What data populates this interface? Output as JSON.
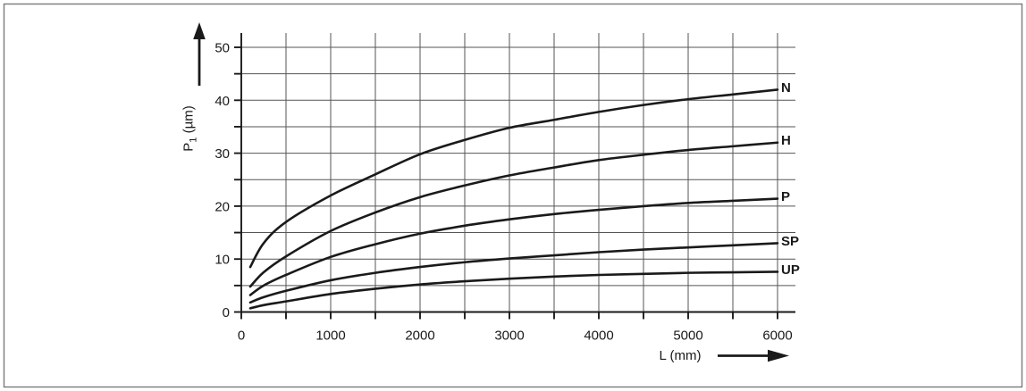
{
  "figure": {
    "background": "#ffffff",
    "border_color": "#7a7a7a"
  },
  "chart_data": {
    "type": "line",
    "title": "",
    "xlabel": "L (mm)",
    "ylabel": "P1 (µm)",
    "ylabel_parts": {
      "main": "P",
      "sub": "1",
      "unit": " (µm)"
    },
    "xlim": [
      0,
      6200
    ],
    "ylim": [
      0,
      52.5
    ],
    "x_tick_labels": [
      "0",
      "1000",
      "2000",
      "3000",
      "4000",
      "5000",
      "6000"
    ],
    "x_tick_values": [
      0,
      1000,
      2000,
      3000,
      4000,
      5000,
      6000
    ],
    "y_tick_labels": [
      "0",
      "10",
      "20",
      "30",
      "40",
      "50"
    ],
    "y_tick_values": [
      0,
      10,
      20,
      30,
      40,
      50
    ],
    "x_grid_step": 500,
    "y_grid_step": 5,
    "grid": true,
    "legend_position": "labels-at-curve-ends",
    "x": [
      100,
      250,
      500,
      1000,
      1500,
      2000,
      2500,
      3000,
      3500,
      4000,
      4500,
      5000,
      5500,
      6000
    ],
    "series": [
      {
        "name": "N",
        "values": [
          8.5,
          13.0,
          17.0,
          22.0,
          26.0,
          29.8,
          32.5,
          34.8,
          36.3,
          37.8,
          39.1,
          40.2,
          41.1,
          42.0
        ]
      },
      {
        "name": "H",
        "values": [
          4.8,
          7.5,
          10.5,
          15.3,
          18.8,
          21.7,
          23.9,
          25.8,
          27.3,
          28.7,
          29.7,
          30.6,
          31.3,
          32.0
        ]
      },
      {
        "name": "P",
        "values": [
          3.2,
          5.0,
          7.0,
          10.4,
          12.8,
          14.8,
          16.3,
          17.5,
          18.5,
          19.3,
          20.0,
          20.6,
          21.0,
          21.4
        ]
      },
      {
        "name": "SP",
        "values": [
          1.8,
          2.8,
          4.0,
          6.0,
          7.4,
          8.5,
          9.4,
          10.1,
          10.7,
          11.3,
          11.8,
          12.2,
          12.6,
          13.0
        ]
      },
      {
        "name": "UP",
        "values": [
          0.7,
          1.3,
          2.0,
          3.4,
          4.4,
          5.2,
          5.8,
          6.3,
          6.7,
          7.0,
          7.2,
          7.4,
          7.5,
          7.6
        ]
      }
    ],
    "colors": {
      "curve": "#1a1a1a",
      "grid": "#555555",
      "axis": "#1a1a1a",
      "text": "#1a1a1a"
    }
  }
}
